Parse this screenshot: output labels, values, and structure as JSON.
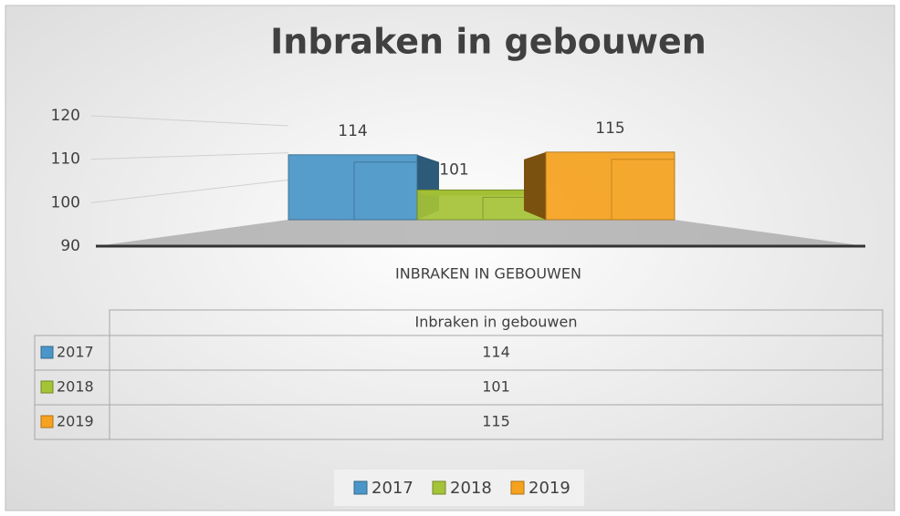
{
  "chart_data": {
    "type": "bar3d",
    "title": "Inbraken in gebouwen",
    "categories": [
      "Inbraken in gebouwen"
    ],
    "x_label": "INBRAKEN IN GEBOUWEN",
    "series": [
      {
        "name": "2017",
        "color": "#4a96c8",
        "values": [
          114
        ]
      },
      {
        "name": "2018",
        "color": "#a5c336",
        "values": [
          101
        ]
      },
      {
        "name": "2019",
        "color": "#f6a21e",
        "values": [
          115
        ]
      }
    ],
    "ylim": [
      90,
      120
    ],
    "yticks": [
      90,
      100,
      110,
      120
    ],
    "grid": true,
    "data_table": true,
    "legend": "bottom"
  }
}
